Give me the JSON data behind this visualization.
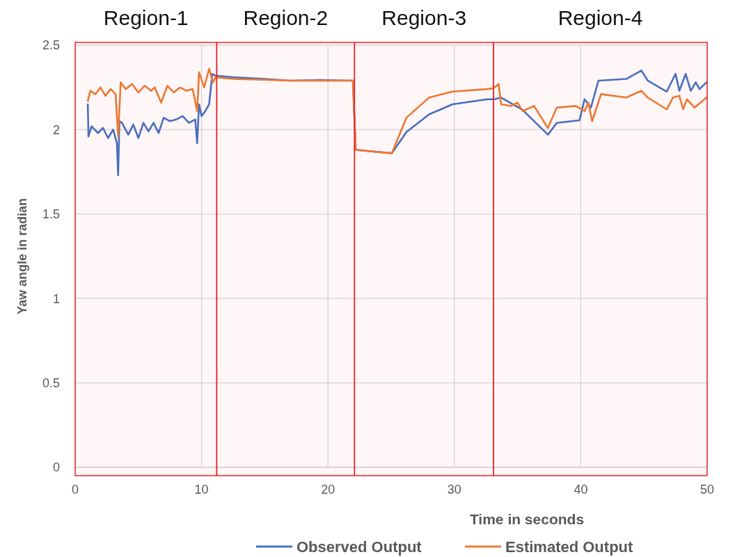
{
  "chart_data": {
    "type": "line",
    "xlabel": "Time in seconds",
    "ylabel": "Yaw angle in radian",
    "xlim": [
      0,
      50
    ],
    "xticks": [
      0,
      10,
      20,
      30,
      40,
      50
    ],
    "ylim": [
      0,
      2.5
    ],
    "yticks": [
      0,
      0.5,
      1,
      1.5,
      2,
      2.5
    ],
    "grid": true,
    "legend": "bottom",
    "line_style": "solid",
    "marker": "none",
    "bands": [
      {
        "axis": "x",
        "from": 0,
        "to": 11.2,
        "label": "Region-1",
        "color": "#e8242c"
      },
      {
        "axis": "x",
        "from": 11.2,
        "to": 22.1,
        "label": "Region-2",
        "color": "#e8242c"
      },
      {
        "axis": "x",
        "from": 22.1,
        "to": 33.1,
        "label": "Region-3",
        "color": "#e8242c"
      },
      {
        "axis": "x",
        "from": 33.1,
        "to": 50,
        "label": "Region-4",
        "color": "#e8242c"
      }
    ],
    "series": [
      {
        "name": "Observed Output",
        "color": "#4472c4",
        "x": [
          1.0,
          1.05,
          1.3,
          1.8,
          2.2,
          2.6,
          3.0,
          3.3,
          3.4,
          3.5,
          3.7,
          4.2,
          4.6,
          5.0,
          5.4,
          5.8,
          6.2,
          6.6,
          7.0,
          7.5,
          8.0,
          8.5,
          9.0,
          9.5,
          9.65,
          9.8,
          10.0,
          10.3,
          10.6,
          10.85,
          11.1,
          12.5,
          15,
          17,
          19.4,
          21.97,
          22.2,
          25.05,
          26.2,
          28.0,
          29.85,
          32.6,
          33.15,
          33.7,
          35.35,
          37.4,
          38.1,
          39.9,
          40.3,
          40.8,
          41.4,
          43.6,
          44.8,
          45.3,
          46.8,
          47.5,
          47.8,
          48.3,
          48.7,
          49.1,
          49.4,
          49.95
        ],
        "values": [
          2.15,
          1.96,
          2.02,
          1.98,
          2.01,
          1.95,
          2.0,
          1.92,
          1.73,
          2.05,
          2.04,
          1.97,
          2.03,
          1.95,
          2.04,
          1.99,
          2.04,
          1.98,
          2.07,
          2.05,
          2.06,
          2.08,
          2.04,
          2.06,
          1.92,
          2.15,
          2.08,
          2.11,
          2.15,
          2.33,
          2.32,
          2.31,
          2.3,
          2.29,
          2.294,
          2.29,
          1.88,
          1.86,
          1.985,
          2.09,
          2.15,
          2.18,
          2.18,
          2.19,
          2.12,
          1.97,
          2.04,
          2.055,
          2.18,
          2.13,
          2.29,
          2.3,
          2.35,
          2.29,
          2.225,
          2.33,
          2.23,
          2.33,
          2.23,
          2.28,
          2.24,
          2.28
        ]
      },
      {
        "name": "Estimated Output",
        "color": "#ed7d31",
        "x": [
          1.0,
          1.2,
          1.6,
          2.0,
          2.4,
          2.8,
          3.2,
          3.4,
          3.6,
          4.0,
          4.5,
          5.0,
          5.5,
          6.0,
          6.3,
          6.8,
          7.3,
          7.8,
          8.3,
          8.8,
          9.3,
          9.65,
          9.8,
          10.2,
          10.6,
          10.9,
          11.1,
          12.5,
          15,
          17,
          19.4,
          21.97,
          22.2,
          25.05,
          26.2,
          28.0,
          29.85,
          32.6,
          33.1,
          33.5,
          33.7,
          34.5,
          35.0,
          35.4,
          36.3,
          37.4,
          38.1,
          39.6,
          40.3,
          40.6,
          40.9,
          41.6,
          43.6,
          44.8,
          45.3,
          46.8,
          47.3,
          47.8,
          48.1,
          48.4,
          49.0,
          49.95
        ],
        "values": [
          2.17,
          2.23,
          2.21,
          2.25,
          2.2,
          2.24,
          2.21,
          1.96,
          2.28,
          2.24,
          2.27,
          2.22,
          2.26,
          2.23,
          2.25,
          2.16,
          2.26,
          2.22,
          2.25,
          2.23,
          2.24,
          2.11,
          2.34,
          2.25,
          2.36,
          2.28,
          2.31,
          2.3,
          2.295,
          2.29,
          2.29,
          2.29,
          1.88,
          1.86,
          2.07,
          2.19,
          2.225,
          2.24,
          2.245,
          2.27,
          2.15,
          2.14,
          2.16,
          2.11,
          2.14,
          2.01,
          2.13,
          2.14,
          2.11,
          2.16,
          2.05,
          2.21,
          2.19,
          2.23,
          2.19,
          2.12,
          2.19,
          2.2,
          2.12,
          2.18,
          2.13,
          2.19
        ]
      }
    ]
  }
}
